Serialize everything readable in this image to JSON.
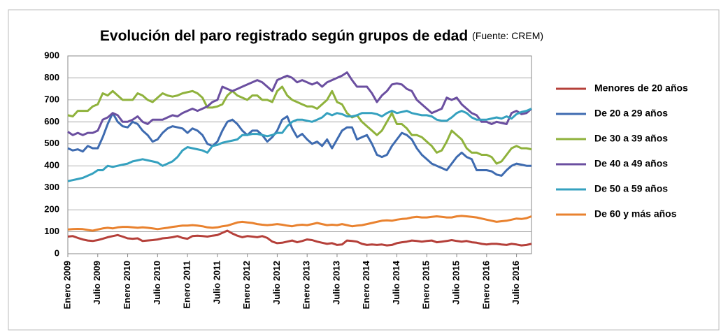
{
  "chart_data": {
    "type": "line",
    "title": "Evolución del paro registrado según grupos de edad",
    "subtitle": "(Fuente: CREM)",
    "categories": [
      "Enero 2009",
      null,
      null,
      null,
      null,
      null,
      "Julio 2009",
      null,
      null,
      null,
      null,
      null,
      "Enero 2010",
      null,
      null,
      null,
      null,
      null,
      "Julio 2010",
      null,
      null,
      null,
      null,
      null,
      "Enero 2011",
      null,
      null,
      null,
      null,
      null,
      "Julio 2011",
      null,
      null,
      null,
      null,
      null,
      "Enero 2012",
      null,
      null,
      null,
      null,
      null,
      "Julio 2012",
      null,
      null,
      null,
      null,
      null,
      "Enero 2013",
      null,
      null,
      null,
      null,
      null,
      "Julio 2013",
      null,
      null,
      null,
      null,
      null,
      "Enero 2014",
      null,
      null,
      null,
      null,
      null,
      "Julio 2014",
      null,
      null,
      null,
      null,
      null,
      "Enero 2015",
      null,
      null,
      null,
      null,
      null,
      "Julio 2015",
      null,
      null,
      null,
      null,
      null,
      "Enero 2016",
      null,
      null,
      null,
      null,
      null,
      "Julio 2016",
      null,
      null,
      null
    ],
    "ylim": [
      0,
      900
    ],
    "yticks": [
      0,
      100,
      200,
      300,
      400,
      500,
      600,
      700,
      800,
      900
    ],
    "grid": true,
    "series": [
      {
        "name": "Menores de 20 años",
        "color": "#b5403a",
        "values": [
          78,
          80,
          72,
          65,
          60,
          58,
          62,
          68,
          75,
          80,
          85,
          78,
          70,
          68,
          70,
          58,
          60,
          62,
          65,
          70,
          72,
          75,
          80,
          72,
          68,
          80,
          82,
          80,
          78,
          82,
          85,
          95,
          105,
          92,
          82,
          75,
          80,
          78,
          75,
          80,
          72,
          55,
          48,
          50,
          55,
          60,
          52,
          58,
          65,
          62,
          55,
          50,
          45,
          48,
          40,
          42,
          60,
          58,
          55,
          45,
          40,
          42,
          40,
          42,
          38,
          40,
          48,
          52,
          55,
          60,
          58,
          55,
          58,
          60,
          52,
          55,
          58,
          62,
          58,
          55,
          58,
          52,
          50,
          45,
          42,
          45,
          45,
          42,
          40,
          45,
          42,
          38,
          40,
          45
        ]
      },
      {
        "name": "De 20 a 29 años",
        "color": "#3e6bb0",
        "values": [
          480,
          470,
          475,
          465,
          490,
          480,
          480,
          530,
          590,
          640,
          600,
          580,
          575,
          600,
          590,
          560,
          540,
          510,
          520,
          550,
          570,
          580,
          575,
          570,
          550,
          570,
          560,
          540,
          500,
          490,
          510,
          560,
          600,
          610,
          590,
          560,
          540,
          560,
          560,
          540,
          510,
          530,
          560,
          610,
          625,
          570,
          530,
          545,
          520,
          500,
          510,
          490,
          520,
          480,
          520,
          560,
          575,
          575,
          520,
          530,
          540,
          500,
          450,
          440,
          450,
          490,
          520,
          550,
          540,
          520,
          480,
          450,
          430,
          410,
          400,
          390,
          380,
          410,
          440,
          460,
          440,
          430,
          380,
          380,
          380,
          375,
          360,
          355,
          380,
          400,
          410,
          405,
          400,
          400
        ]
      },
      {
        "name": "De 30 a 39 años",
        "color": "#8fb23c",
        "values": [
          630,
          625,
          650,
          650,
          650,
          670,
          680,
          730,
          720,
          740,
          720,
          700,
          700,
          700,
          730,
          720,
          700,
          690,
          710,
          730,
          720,
          715,
          720,
          730,
          735,
          740,
          730,
          710,
          665,
          665,
          670,
          680,
          720,
          740,
          720,
          710,
          700,
          720,
          720,
          700,
          700,
          690,
          740,
          760,
          720,
          700,
          690,
          680,
          670,
          670,
          660,
          680,
          700,
          740,
          690,
          680,
          640,
          620,
          630,
          600,
          580,
          560,
          540,
          560,
          600,
          640,
          590,
          590,
          570,
          540,
          540,
          530,
          510,
          490,
          460,
          470,
          510,
          560,
          540,
          520,
          480,
          460,
          460,
          450,
          450,
          440,
          410,
          420,
          450,
          480,
          490,
          480,
          480,
          475
        ]
      },
      {
        "name": "De 40 a 49 años",
        "color": "#6b4fa0",
        "values": [
          555,
          540,
          550,
          540,
          550,
          550,
          560,
          610,
          620,
          640,
          630,
          600,
          600,
          610,
          625,
          600,
          590,
          610,
          610,
          610,
          620,
          630,
          625,
          640,
          650,
          660,
          650,
          660,
          670,
          690,
          700,
          760,
          750,
          740,
          750,
          760,
          770,
          780,
          790,
          780,
          760,
          740,
          790,
          800,
          810,
          800,
          780,
          790,
          780,
          770,
          780,
          760,
          780,
          790,
          800,
          810,
          825,
          790,
          760,
          760,
          760,
          730,
          690,
          720,
          740,
          770,
          775,
          770,
          750,
          740,
          700,
          680,
          660,
          640,
          650,
          660,
          710,
          700,
          710,
          680,
          660,
          640,
          630,
          600,
          600,
          590,
          600,
          595,
          590,
          640,
          650,
          635,
          640,
          660
        ]
      },
      {
        "name": "De 50 a 59 años",
        "color": "#35a1bf",
        "values": [
          330,
          335,
          340,
          345,
          355,
          365,
          380,
          380,
          400,
          395,
          400,
          405,
          410,
          420,
          425,
          430,
          425,
          420,
          415,
          400,
          410,
          420,
          440,
          470,
          485,
          480,
          475,
          470,
          460,
          490,
          495,
          505,
          510,
          515,
          520,
          540,
          540,
          545,
          545,
          540,
          535,
          540,
          550,
          550,
          580,
          600,
          610,
          610,
          605,
          600,
          610,
          620,
          640,
          630,
          640,
          635,
          625,
          625,
          630,
          640,
          640,
          640,
          635,
          625,
          640,
          650,
          640,
          645,
          650,
          640,
          635,
          630,
          630,
          625,
          610,
          605,
          605,
          620,
          640,
          650,
          640,
          620,
          610,
          610,
          610,
          615,
          620,
          615,
          625,
          615,
          635,
          645,
          650,
          660
        ]
      },
      {
        "name": "De 60 y más años",
        "color": "#e9822f",
        "values": [
          110,
          112,
          113,
          112,
          108,
          105,
          110,
          115,
          118,
          115,
          120,
          122,
          122,
          120,
          118,
          120,
          118,
          115,
          112,
          115,
          118,
          122,
          125,
          128,
          128,
          130,
          128,
          125,
          120,
          118,
          120,
          125,
          128,
          135,
          142,
          145,
          142,
          140,
          135,
          132,
          130,
          132,
          135,
          132,
          128,
          125,
          130,
          132,
          130,
          135,
          140,
          135,
          130,
          132,
          130,
          135,
          130,
          125,
          128,
          130,
          135,
          140,
          145,
          150,
          152,
          150,
          155,
          158,
          160,
          165,
          168,
          165,
          165,
          168,
          170,
          168,
          165,
          165,
          170,
          172,
          170,
          168,
          165,
          160,
          155,
          150,
          145,
          148,
          150,
          155,
          160,
          158,
          162,
          170
        ]
      }
    ]
  }
}
